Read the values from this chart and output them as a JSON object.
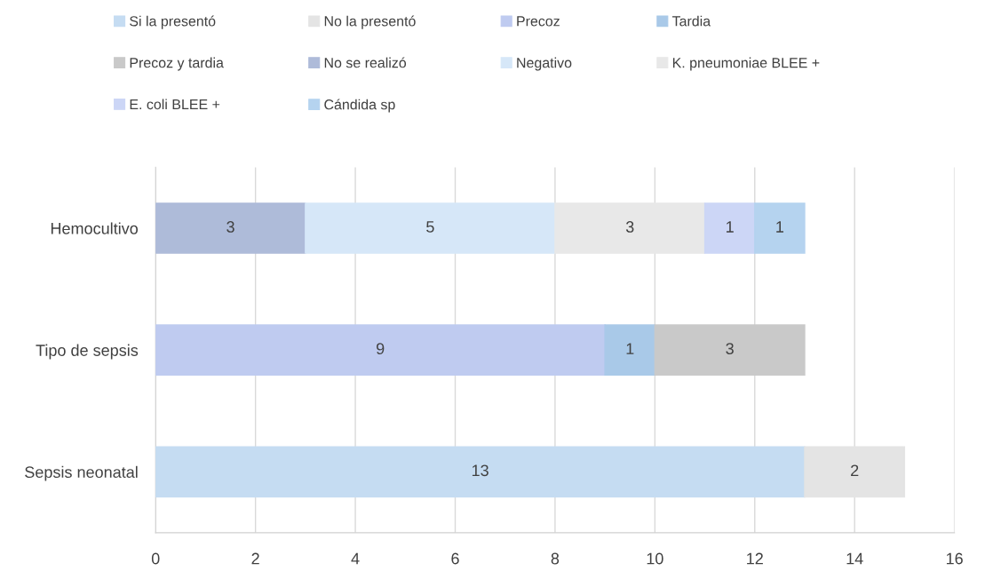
{
  "chart_data": {
    "type": "bar",
    "orientation": "horizontal",
    "stacked": true,
    "categories": [
      "Hemocultivo",
      "Tipo de sepsis",
      "Sepsis neonatal"
    ],
    "series": [
      {
        "name": "Si la presentó",
        "color": "#c5dcf2",
        "values": [
          null,
          null,
          13
        ]
      },
      {
        "name": "No la presentó",
        "color": "#e4e4e4",
        "values": [
          null,
          null,
          2
        ]
      },
      {
        "name": "Precoz",
        "color": "#bfcbf0",
        "values": [
          null,
          9,
          null
        ]
      },
      {
        "name": "Tardia",
        "color": "#a9c9e8",
        "values": [
          null,
          1,
          null
        ]
      },
      {
        "name": "Precoz y tardia",
        "color": "#c9c9c9",
        "values": [
          null,
          3,
          null
        ]
      },
      {
        "name": "No se realizó",
        "color": "#aebbd9",
        "values": [
          3,
          null,
          null
        ]
      },
      {
        "name": "Negativo",
        "color": "#d6e7f8",
        "values": [
          5,
          null,
          null
        ]
      },
      {
        "name": "K. pneumoniae BLEE +",
        "color": "#e8e8e8",
        "values": [
          3,
          null,
          null
        ]
      },
      {
        "name": "E. coli BLEE +",
        "color": "#ccd6f6",
        "values": [
          1,
          null,
          null
        ]
      },
      {
        "name": "Cándida sp",
        "color": "#b5d3ef",
        "values": [
          1,
          null,
          null
        ]
      }
    ],
    "xlim": [
      0,
      16
    ],
    "xticks": [
      0,
      2,
      4,
      6,
      8,
      10,
      12,
      14,
      16
    ],
    "grid": "x",
    "legend": "top",
    "data_labels": true
  }
}
